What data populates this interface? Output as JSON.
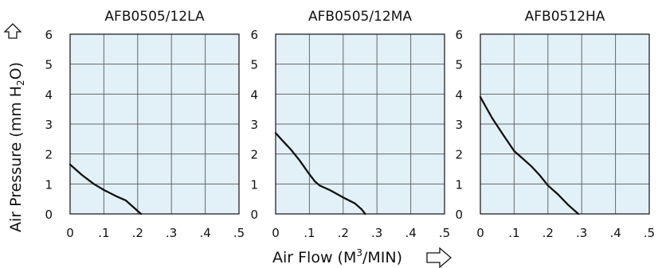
{
  "y_axis_label": "Air Pressure (mm H",
  "y_axis_sub": "2",
  "y_axis_label_end": "O)",
  "x_axis_label": "Air Flow (M",
  "x_axis_sup": "3",
  "x_axis_label_end": "/MIN)",
  "colors": {
    "plot_bg": "#e2f1f8",
    "grid": "#666666",
    "curve": "#111111",
    "frame": "#222222"
  },
  "chart_data": [
    {
      "type": "line",
      "title": "AFB0505/12LA",
      "x": [
        0,
        0.035,
        0.07,
        0.1,
        0.135,
        0.165,
        0.19,
        0.21
      ],
      "y": [
        1.65,
        1.3,
        1.0,
        0.8,
        0.6,
        0.45,
        0.2,
        0.0
      ],
      "xticks": [
        "0",
        ".1",
        ".2",
        ".3",
        ".4",
        ".5"
      ],
      "yticks": [
        "0",
        "1",
        "2",
        "3",
        "4",
        "5",
        "6"
      ],
      "xlim": [
        0,
        0.5
      ],
      "ylim": [
        0,
        6
      ],
      "grid": true
    },
    {
      "type": "line",
      "title": "AFB0505/12MA",
      "x": [
        0,
        0.02,
        0.045,
        0.07,
        0.095,
        0.115,
        0.13,
        0.16,
        0.2,
        0.235,
        0.255,
        0.265
      ],
      "y": [
        2.7,
        2.45,
        2.15,
        1.8,
        1.4,
        1.1,
        0.95,
        0.8,
        0.55,
        0.35,
        0.15,
        0.0
      ],
      "xticks": [
        "0",
        ".1",
        ".2",
        ".3",
        ".4",
        ".5"
      ],
      "yticks": [
        "0",
        "1",
        "2",
        "3",
        "4",
        "5",
        "6"
      ],
      "xlim": [
        0,
        0.5
      ],
      "ylim": [
        0,
        6
      ],
      "grid": true
    },
    {
      "type": "line",
      "title": "AFB0512HA",
      "x": [
        0,
        0.035,
        0.07,
        0.1,
        0.12,
        0.15,
        0.175,
        0.2,
        0.23,
        0.26,
        0.29
      ],
      "y": [
        3.9,
        3.2,
        2.6,
        2.1,
        1.9,
        1.6,
        1.3,
        0.95,
        0.65,
        0.3,
        0.0
      ],
      "xticks": [
        "0",
        ".1",
        ".2",
        ".3",
        ".4",
        ".5"
      ],
      "yticks": [
        "0",
        "1",
        "2",
        "3",
        "4",
        "5",
        "6"
      ],
      "xlim": [
        0,
        0.5
      ],
      "ylim": [
        0,
        6
      ],
      "grid": true
    }
  ]
}
